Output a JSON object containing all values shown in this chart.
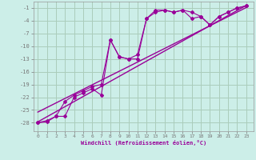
{
  "xlabel": "Windchill (Refroidissement éolien,°C)",
  "bg_color": "#cceee8",
  "grid_color": "#aaccbb",
  "line_color": "#990099",
  "x_ticks": [
    0,
    1,
    2,
    3,
    4,
    5,
    6,
    7,
    8,
    9,
    10,
    11,
    12,
    13,
    14,
    15,
    16,
    17,
    18,
    19,
    20,
    21,
    22,
    23
  ],
  "y_ticks": [
    -1,
    -4,
    -7,
    -10,
    -13,
    -16,
    -19,
    -22,
    -25,
    -28
  ],
  "xlim": [
    -0.5,
    23.8
  ],
  "ylim": [
    -30,
    0.5
  ],
  "data_line1_x": [
    0,
    1,
    2,
    3,
    4,
    5,
    6,
    7,
    8,
    9,
    10,
    11,
    12,
    13,
    14,
    15,
    16,
    17,
    18,
    19,
    20,
    21,
    22,
    23
  ],
  "data_line1_y": [
    -28,
    -27.5,
    -26.5,
    -23,
    -21.5,
    -20.5,
    -19.5,
    -19,
    -8.5,
    -12.5,
    -13,
    -12,
    -3.5,
    -2,
    -1.5,
    -2,
    -1.5,
    -2,
    -3,
    -5,
    -3,
    -2,
    -1,
    -0.5
  ],
  "data_line2_x": [
    0,
    1,
    2,
    3,
    4,
    5,
    6,
    7,
    8,
    9,
    10,
    11,
    12,
    13,
    14,
    15,
    16,
    17,
    18,
    19,
    20,
    21,
    22,
    23
  ],
  "data_line2_y": [
    -28,
    -27.8,
    -26.5,
    -26.5,
    -22,
    -21,
    -20,
    -21.5,
    -8.5,
    -12.5,
    -13,
    -13,
    -3.5,
    -1.5,
    -1.5,
    -2,
    -1.5,
    -3.5,
    -3,
    -5,
    -3,
    -2,
    -1,
    -0.5
  ],
  "regression_line1_x": [
    0,
    23
  ],
  "regression_line1_y": [
    -27.8,
    -0.4
  ],
  "regression_line2_x": [
    0,
    23
  ],
  "regression_line2_y": [
    -25.5,
    -0.9
  ]
}
